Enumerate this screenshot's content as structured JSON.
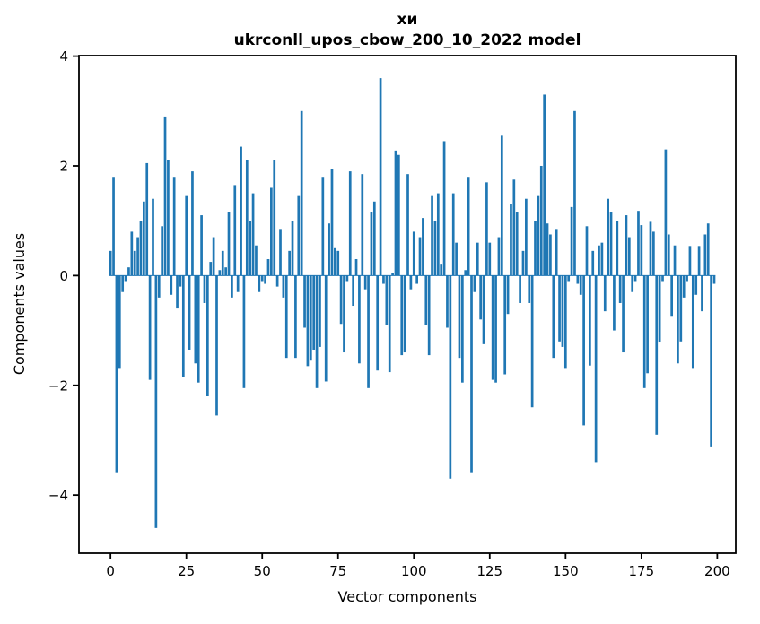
{
  "chart_data": {
    "type": "bar",
    "title": "хи",
    "subtitle": "ukrconll_upos_cbow_200_10_2022 model",
    "xlabel": "Vector components",
    "ylabel": "Components values",
    "bar_color": "#1f77b4",
    "axis_color": "#000000",
    "x_ticks": [
      0,
      25,
      50,
      75,
      100,
      125,
      150,
      175,
      200
    ],
    "y_ticks": [
      -4,
      -2,
      0,
      2,
      4
    ],
    "xlim": [
      -10.4,
      206.1
    ],
    "ylim": [
      -5.06,
      4.01
    ],
    "grid": false,
    "legend": false,
    "n_components": 200,
    "values": [
      0.45,
      1.8,
      -3.6,
      -1.7,
      -0.3,
      -0.1,
      0.15,
      0.8,
      0.45,
      0.7,
      1.0,
      1.35,
      2.05,
      -1.9,
      1.4,
      -4.6,
      -0.4,
      0.9,
      2.9,
      2.1,
      -0.35,
      1.8,
      -0.6,
      -0.2,
      -1.85,
      1.45,
      -1.35,
      1.9,
      -1.6,
      -1.95,
      1.1,
      -0.5,
      -2.2,
      0.25,
      0.7,
      -2.55,
      0.1,
      0.45,
      0.15,
      1.15,
      -0.4,
      1.65,
      -0.3,
      2.35,
      -2.05,
      2.1,
      1.0,
      1.5,
      0.55,
      -0.3,
      -0.1,
      -0.15,
      0.3,
      1.6,
      2.1,
      -0.2,
      0.85,
      -0.4,
      -1.5,
      0.45,
      1.0,
      -1.5,
      1.45,
      3.0,
      -0.95,
      -1.65,
      -1.55,
      -1.35,
      -2.05,
      -1.3,
      1.8,
      -1.93,
      0.95,
      1.95,
      0.5,
      0.45,
      -0.88,
      -1.4,
      -0.1,
      1.9,
      -0.55,
      0.3,
      -1.6,
      1.85,
      -0.25,
      -2.05,
      1.15,
      1.35,
      -1.73,
      3.6,
      -0.15,
      -0.9,
      -1.76,
      0.05,
      2.28,
      2.2,
      -1.45,
      -1.4,
      1.85,
      -0.25,
      0.8,
      -0.15,
      0.7,
      1.05,
      -0.9,
      -1.45,
      1.45,
      1.0,
      1.5,
      0.2,
      2.45,
      -0.95,
      -3.7,
      1.5,
      0.6,
      -1.5,
      -1.95,
      0.1,
      1.8,
      -3.6,
      -0.3,
      0.6,
      -0.8,
      -1.25,
      1.7,
      0.6,
      -1.9,
      -1.95,
      0.7,
      2.55,
      -1.8,
      -0.7,
      1.3,
      1.75,
      1.15,
      -0.5,
      0.45,
      1.4,
      -0.5,
      -2.4,
      1.0,
      1.45,
      2.0,
      3.3,
      0.95,
      0.75,
      -1.5,
      0.85,
      -1.2,
      -1.3,
      -1.7,
      -0.1,
      1.25,
      3.0,
      -0.15,
      -0.35,
      -2.73,
      0.9,
      -1.64,
      0.45,
      -3.4,
      0.55,
      0.6,
      -0.65,
      1.4,
      1.15,
      -1.0,
      1.0,
      -0.5,
      -1.4,
      1.1,
      0.7,
      -0.3,
      -0.1,
      1.18,
      0.92,
      -2.05,
      -1.78,
      0.98,
      0.8,
      -2.9,
      -1.22,
      -0.1,
      2.3,
      0.75,
      -0.75,
      0.55,
      -1.6,
      -1.2,
      -0.4,
      -0.1,
      0.54,
      -1.7,
      -0.35,
      0.54,
      -0.65,
      0.75,
      0.95,
      -3.13,
      -0.15
    ]
  }
}
